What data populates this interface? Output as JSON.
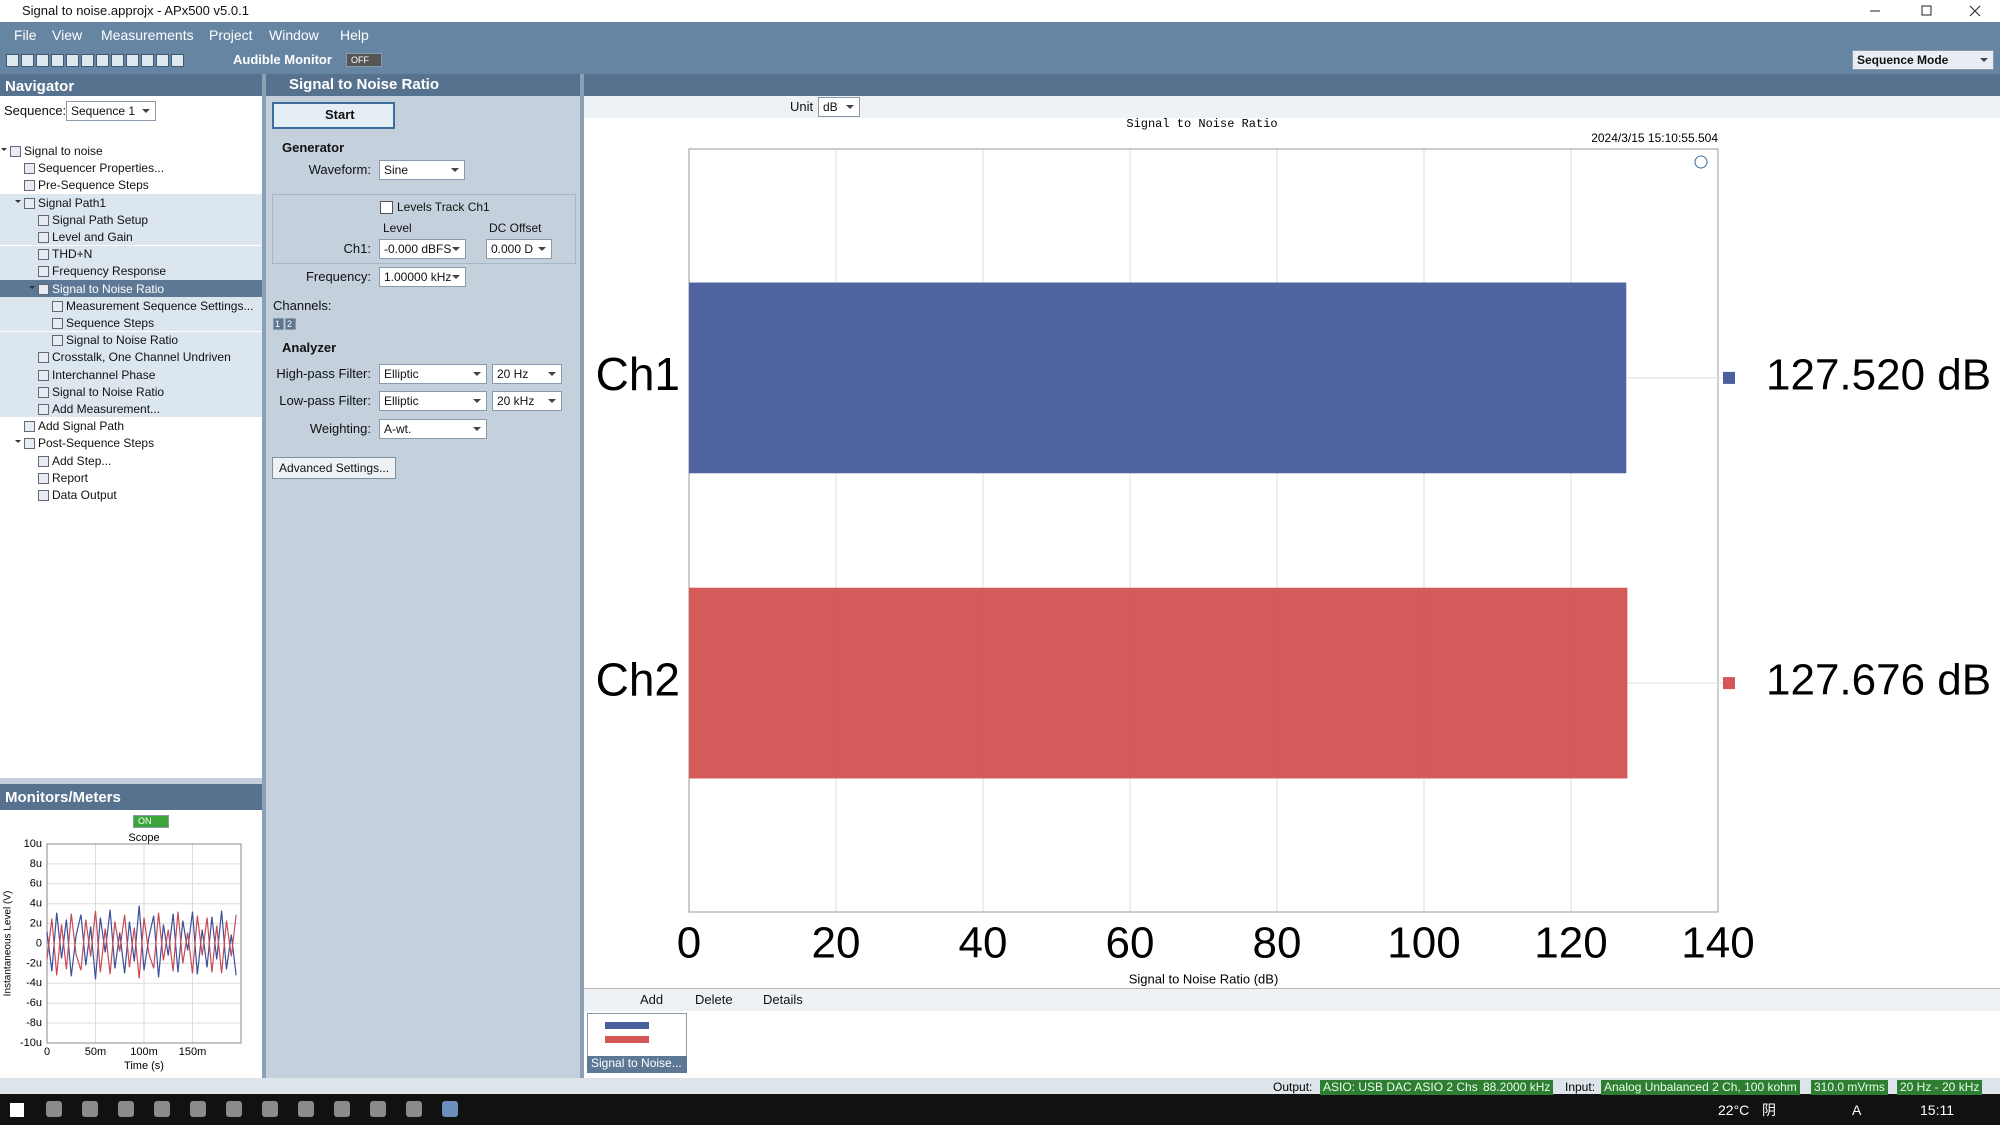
{
  "window": {
    "title": "Signal to noise.approjx - APx500 v5.0.1"
  },
  "menu": [
    "File",
    "View",
    "Measurements",
    "Project",
    "Window",
    "Help"
  ],
  "toolbar": {
    "audible_monitor": "Audible Monitor",
    "monitor_state": "OFF",
    "mode": "Sequence Mode"
  },
  "navigator": {
    "title": "Navigator",
    "sequence_label": "Sequence:",
    "sequence": "Sequence 1",
    "tree": [
      {
        "label": "Signal to noise",
        "children": [
          {
            "label": "Sequencer Properties..."
          },
          {
            "label": "Pre-Sequence Steps"
          },
          {
            "label": "Signal Path1",
            "active": true,
            "children": [
              {
                "label": "Signal Path Setup"
              },
              {
                "label": "Level and Gain"
              },
              {
                "label": "THD+N"
              },
              {
                "label": "Frequency Response"
              },
              {
                "label": "Signal to Noise Ratio",
                "selected": true,
                "children": [
                  {
                    "label": "Measurement Sequence Settings..."
                  },
                  {
                    "label": "Sequence Steps"
                  },
                  {
                    "label": "Signal to Noise Ratio"
                  }
                ]
              },
              {
                "label": "Crosstalk, One Channel Undriven"
              },
              {
                "label": "Interchannel Phase"
              },
              {
                "label": "Signal to Noise Ratio"
              },
              {
                "label": "Add Measurement..."
              }
            ]
          },
          {
            "label": "Add Signal Path"
          },
          {
            "label": "Post-Sequence Steps",
            "children": [
              {
                "label": "Add Step..."
              },
              {
                "label": "Report"
              },
              {
                "label": "Data Output"
              }
            ]
          }
        ]
      }
    ]
  },
  "monitors": {
    "title": "Monitors/Meters",
    "state": "ON"
  },
  "measurement_panel": {
    "title": "Signal to Noise Ratio",
    "start": "Start",
    "generator": {
      "title": "Generator",
      "waveform_label": "Waveform:",
      "waveform": "Sine",
      "levels_track": "Levels Track Ch1",
      "level_label": "Level",
      "dc_offset_label": "DC Offset",
      "ch1_label": "Ch1:",
      "ch1_level": "-0.000 dBFS",
      "ch1_dc_offset": "0.000 D",
      "frequency_label": "Frequency:",
      "frequency": "1.00000 kHz",
      "channels_label": "Channels:",
      "channels": [
        "1",
        "2"
      ]
    },
    "analyzer": {
      "title": "Analyzer",
      "highpass_label": "High-pass Filter:",
      "highpass_type": "Elliptic",
      "highpass_freq": "20 Hz",
      "lowpass_label": "Low-pass Filter:",
      "lowpass_type": "Elliptic",
      "lowpass_freq": "20 kHz",
      "weighting_label": "Weighting:",
      "weighting": "A-wt."
    },
    "advanced": "Advanced Settings..."
  },
  "graph_toolbar": {
    "unit_label": "Unit",
    "unit": "dB"
  },
  "graph_bottom": {
    "add": "Add",
    "delete": "Delete",
    "details": "Details",
    "thumbnail": "Signal to Noise..."
  },
  "status": {
    "output_label": "Output:",
    "output_device": "ASIO: USB DAC ASIO 2 Chs",
    "output_rate": "88.2000 kHz",
    "input_label": "Input:",
    "input_device": "Analog Unbalanced 2 Ch, 100 kohm",
    "input_level": "310.0 mVrms",
    "input_bw": "20 Hz - 20 kHz"
  },
  "taskbar": {
    "temperature": "22°C",
    "weather": "阴",
    "ime": "A",
    "time": "15:11"
  },
  "chart_data": [
    {
      "type": "bar",
      "orientation": "horizontal",
      "title": "Signal to Noise Ratio",
      "timestamp": "2024/3/15 15:10:55.504",
      "categories": [
        "Ch1",
        "Ch2"
      ],
      "values": [
        127.52,
        127.676
      ],
      "value_labels": [
        "127.520 dB",
        "127.676 dB"
      ],
      "colors": [
        "#4a5f9e",
        "#d45656"
      ],
      "xlabel": "Signal to Noise Ratio (dB)",
      "xlim": [
        0,
        140
      ],
      "xticks": [
        0,
        20,
        40,
        60,
        80,
        100,
        120,
        140
      ],
      "grid": true
    },
    {
      "type": "line",
      "title": "Scope",
      "xlabel": "Time (s)",
      "ylabel": "Instantaneous Level (V)",
      "x": [
        0,
        5,
        10,
        15,
        20,
        25,
        30,
        35,
        40,
        45,
        50,
        55,
        60,
        65,
        70,
        75,
        80,
        85,
        90,
        95,
        100,
        105,
        110,
        115,
        120,
        125,
        130,
        135,
        140,
        145,
        150,
        155,
        160,
        165,
        170,
        175,
        180,
        185,
        190,
        195
      ],
      "series": [
        {
          "name": "Ch1",
          "color": "#3c4f9a",
          "values": [
            1.2,
            -2.8,
            3.1,
            -1.5,
            2.4,
            -3.3,
            0.8,
            2.9,
            -2.2,
            1.7,
            -3.6,
            2.6,
            -0.9,
            3.4,
            -2.5,
            1.1,
            -3.0,
            2.2,
            -1.8,
            3.8,
            -2.7,
            0.6,
            2.8,
            -3.4,
            1.9,
            -1.2,
            3.0,
            -2.9,
            2.3,
            -0.7,
            3.2,
            -3.1,
            1.4,
            -2.4,
            2.7,
            -1.6,
            3.3,
            -2.6,
            0.9,
            -3.2
          ]
        },
        {
          "name": "Ch2",
          "color": "#c94a55",
          "values": [
            -1.6,
            2.5,
            -3.2,
            1.9,
            -2.6,
            3.0,
            -1.1,
            -2.7,
            2.4,
            -1.3,
            3.3,
            -2.9,
            1.5,
            -3.1,
            2.2,
            -0.8,
            2.9,
            -2.4,
            1.6,
            -3.5,
            2.6,
            -1.0,
            -2.5,
            3.1,
            -1.7,
            1.4,
            -2.8,
            3.2,
            -2.0,
            1.1,
            -3.0,
            2.8,
            -1.2,
            2.6,
            -2.9,
            1.8,
            -3.0,
            2.3,
            -1.3,
            2.9
          ]
        }
      ],
      "xlim": [
        0,
        200
      ],
      "xticks": [
        0,
        {
          "value": 50,
          "label": "50m"
        },
        {
          "value": 100,
          "label": "100m"
        },
        {
          "value": 150,
          "label": "150m"
        }
      ],
      "ylim": [
        -10,
        10
      ],
      "yticks": [
        {
          "value": 10,
          "label": "10u"
        },
        {
          "value": 8,
          "label": "8u"
        },
        {
          "value": 6,
          "label": "6u"
        },
        {
          "value": 4,
          "label": "4u"
        },
        {
          "value": 2,
          "label": "2u"
        },
        0,
        {
          "value": -2,
          "label": "-2u"
        },
        {
          "value": -4,
          "label": "-4u"
        },
        {
          "value": -6,
          "label": "-6u"
        },
        {
          "value": -8,
          "label": "-8u"
        },
        {
          "value": -10,
          "label": "-10u"
        }
      ],
      "grid": true
    }
  ]
}
